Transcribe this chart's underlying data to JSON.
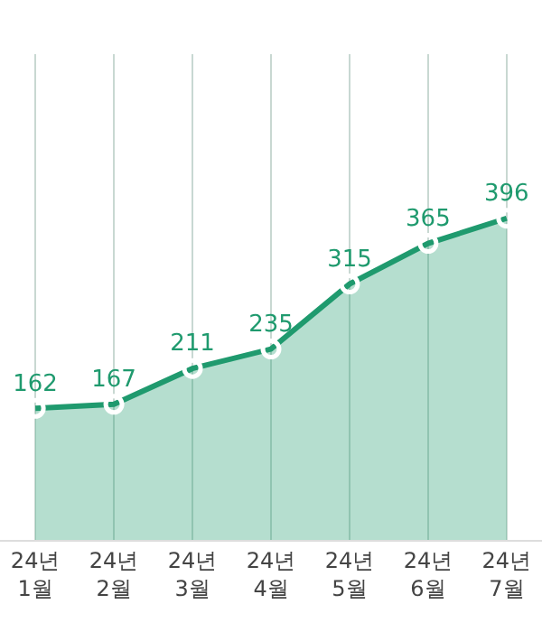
{
  "chart_data": {
    "type": "area",
    "categories": [
      "24년\n1월",
      "24년\n2월",
      "24년\n3월",
      "24년\n4월",
      "24년\n5월",
      "24년\n6월",
      "24년\n7월"
    ],
    "series": [
      {
        "color": "#1f9a6e",
        "values": [
          162,
          167,
          211,
          235,
          315,
          365,
          396
        ]
      }
    ],
    "ylim": [
      0,
      598
    ],
    "data_labels": true,
    "marker": "circle",
    "line_style": "solid",
    "grid": "x",
    "legend": false
  }
}
